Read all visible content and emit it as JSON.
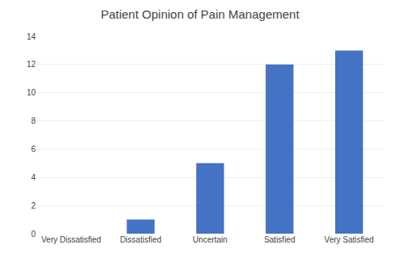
{
  "chart_data": {
    "type": "bar",
    "title": "Patient Opinion of Pain Management",
    "categories": [
      "Very Dissatisfied",
      "Dissatisfied",
      "Uncertain",
      "Satisfied",
      "Very Satisfied"
    ],
    "values": [
      0,
      1,
      5,
      12,
      13
    ],
    "color": "#4472C4",
    "ylim": [
      0,
      14
    ],
    "yticks": [
      0,
      2,
      4,
      6,
      8,
      10,
      12,
      14
    ],
    "grid": true
  }
}
